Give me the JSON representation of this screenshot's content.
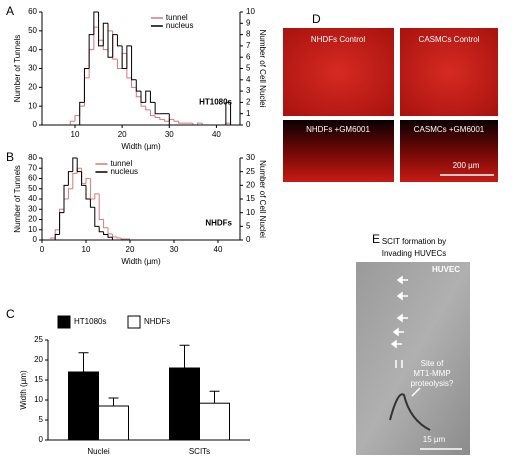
{
  "panels": {
    "A": "A",
    "B": "B",
    "C": "C",
    "D": "D",
    "E": "E"
  },
  "chart_data": [
    {
      "type": "histogram",
      "xlabel": "Width (µm)",
      "ylabel": "Number of Tunnels",
      "y2label": "Number of Cell Nuclei",
      "annotation": "HT1080s",
      "legend": "upper right",
      "bins": [
        5,
        6,
        7,
        8,
        9,
        10,
        11,
        12,
        13,
        14,
        15,
        16,
        17,
        18,
        19,
        20,
        21,
        22,
        23,
        24,
        25,
        26,
        27,
        28,
        29,
        30,
        31,
        32,
        33,
        34,
        35,
        36,
        37,
        38,
        39,
        40,
        41,
        42,
        43
      ],
      "series": [
        {
          "name": "tunnel",
          "color": "#d9777a",
          "axis": "y",
          "values": [
            0,
            0,
            0,
            0,
            2,
            5,
            10,
            25,
            40,
            52,
            45,
            40,
            50,
            35,
            30,
            38,
            25,
            20,
            15,
            10,
            8,
            5,
            4,
            3,
            2,
            3,
            2,
            1,
            1,
            1,
            0,
            1,
            0,
            0,
            0,
            0,
            0,
            1
          ]
        },
        {
          "name": "nucleus",
          "color": "#000000",
          "axis": "y2",
          "values": [
            0,
            0,
            0,
            0,
            0,
            0,
            2,
            5,
            8,
            10,
            7,
            9,
            6,
            8,
            7,
            5,
            7,
            4,
            3,
            2,
            3,
            2,
            1,
            1,
            1,
            0,
            0,
            0,
            0,
            0,
            0,
            0,
            0,
            0,
            0,
            0,
            0,
            2
          ]
        }
      ],
      "xlim": [
        3,
        45
      ],
      "xticks": [
        10,
        20,
        30,
        40
      ],
      "ylim": [
        0,
        60
      ],
      "yticks": [
        0,
        10,
        20,
        30,
        40,
        50,
        60
      ],
      "y2lim": [
        0,
        10
      ],
      "y2ticks": [
        0,
        1,
        2,
        3,
        4,
        5,
        6,
        7,
        8,
        9,
        10
      ]
    },
    {
      "type": "histogram",
      "xlabel": "Width (µm)",
      "ylabel": "Number of Tunnels",
      "y2label": "Number of Cell Nuclei",
      "annotation": "NHDFs",
      "legend": "upper left",
      "bins": [
        2,
        3,
        4,
        5,
        6,
        7,
        8,
        9,
        10,
        11,
        12,
        13,
        14,
        15,
        16,
        17,
        18,
        19,
        20
      ],
      "series": [
        {
          "name": "tunnel",
          "color": "#d9777a",
          "axis": "y",
          "values": [
            2,
            10,
            30,
            40,
            50,
            65,
            70,
            55,
            60,
            40,
            45,
            20,
            12,
            6,
            3,
            2,
            1,
            1
          ]
        },
        {
          "name": "nucleus",
          "color": "#000000",
          "axis": "y2",
          "values": [
            0,
            2,
            10,
            20,
            25,
            30,
            25,
            20,
            15,
            12,
            5,
            3,
            2,
            1,
            0,
            0,
            0,
            0
          ]
        }
      ],
      "xlim": [
        0,
        45
      ],
      "xticks": [
        0,
        10,
        20,
        30,
        40
      ],
      "ylim": [
        0,
        80
      ],
      "yticks": [
        0,
        10,
        20,
        30,
        40,
        50,
        60,
        70,
        80
      ],
      "y2lim": [
        0,
        30
      ],
      "y2ticks": [
        0,
        5,
        10,
        15,
        20,
        25,
        30
      ]
    },
    {
      "type": "bar",
      "ylabel": "Width (µm)",
      "legend": "top",
      "categories": [
        "Nuclei",
        "SCITs"
      ],
      "series": [
        {
          "name": "HT1080s",
          "color": "#000000",
          "values": [
            17,
            18
          ],
          "errors": [
            4.8,
            5.7
          ]
        },
        {
          "name": "NHDFs",
          "color": "#ffffff",
          "values": [
            8.5,
            9.2
          ],
          "errors": [
            2,
            3
          ]
        }
      ],
      "ylim": [
        0,
        25
      ],
      "yticks": [
        0,
        5,
        10,
        15,
        20,
        25
      ]
    }
  ],
  "images": {
    "D": {
      "labels": [
        "NHDFs Control",
        "CASMCs Control",
        "NHDFs +GM6001",
        "CASMCs +GM6001"
      ],
      "scale": "200 µm"
    },
    "E": {
      "title_lines": [
        "SCIT formation by",
        "Invading HUVECs"
      ],
      "cell": "HUVEC",
      "note_lines": [
        "Site of",
        "MT1-MMP",
        "proteolysis?"
      ],
      "scale": "15 µm"
    }
  }
}
